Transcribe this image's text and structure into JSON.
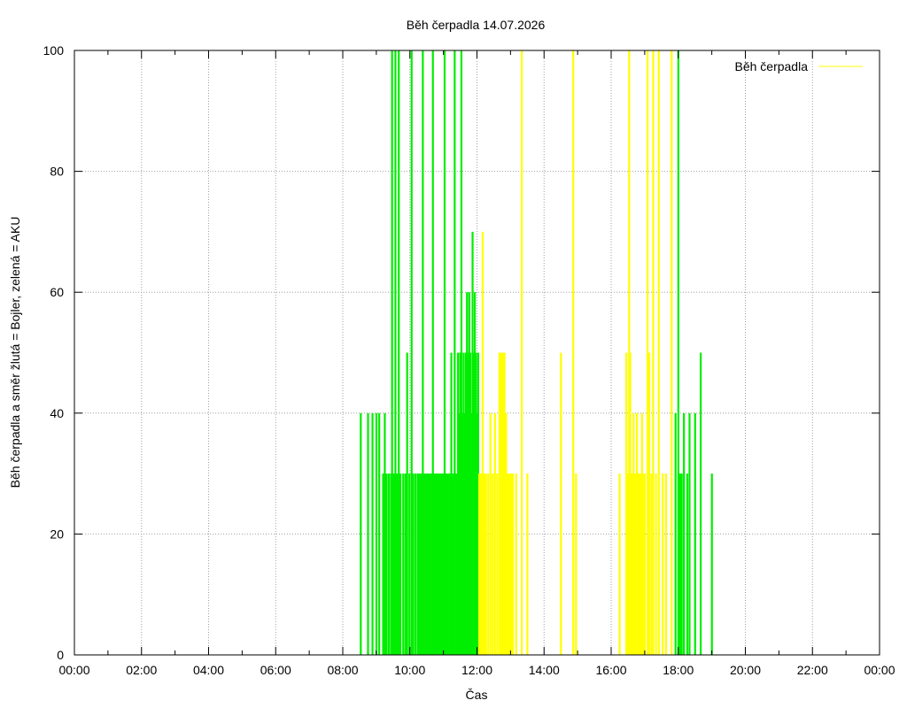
{
  "chart_data": {
    "type": "bar",
    "title": "Běh čerpadla 14.07.2026",
    "xlabel": "Čas",
    "ylabel": "Běh čerpadla a směr žlutá = Bojler, zelená = AKU",
    "legend": {
      "label": "Běh čerpadla",
      "position": "top-right"
    },
    "xlim": [
      "00:00",
      "24:00"
    ],
    "ylim": [
      0,
      100
    ],
    "grid": true,
    "x_ticks": [
      "00:00",
      "02:00",
      "04:00",
      "06:00",
      "08:00",
      "10:00",
      "12:00",
      "14:00",
      "16:00",
      "18:00",
      "20:00",
      "22:00",
      "00:00"
    ],
    "y_ticks": [
      "0",
      "20",
      "40",
      "60",
      "80",
      "100"
    ],
    "colors": {
      "Bojler": "#ffff00",
      "AKU": "#00ee00"
    },
    "series": [
      {
        "name": "AKU",
        "color": "#00ee00",
        "points": [
          [
            "08:32",
            40
          ],
          [
            "08:45",
            40
          ],
          [
            "08:53",
            40
          ],
          [
            "09:00",
            40
          ],
          [
            "09:05",
            40
          ],
          [
            "09:12",
            30
          ],
          [
            "09:15",
            40
          ],
          [
            "09:18",
            30
          ],
          [
            "09:22",
            30
          ],
          [
            "09:26",
            30
          ],
          [
            "09:28",
            100
          ],
          [
            "09:31",
            30
          ],
          [
            "09:34",
            100
          ],
          [
            "09:37",
            30
          ],
          [
            "09:40",
            100
          ],
          [
            "09:43",
            30
          ],
          [
            "09:48",
            30
          ],
          [
            "09:52",
            30
          ],
          [
            "09:55",
            50
          ],
          [
            "09:59",
            30
          ],
          [
            "10:03",
            100
          ],
          [
            "10:06",
            30
          ],
          [
            "10:10",
            30
          ],
          [
            "10:14",
            30
          ],
          [
            "10:17",
            30
          ],
          [
            "10:20",
            30
          ],
          [
            "10:23",
            100
          ],
          [
            "10:26",
            30
          ],
          [
            "10:29",
            30
          ],
          [
            "10:32",
            30
          ],
          [
            "10:35",
            30
          ],
          [
            "10:38",
            30
          ],
          [
            "10:41",
            100
          ],
          [
            "10:44",
            30
          ],
          [
            "10:47",
            30
          ],
          [
            "10:50",
            30
          ],
          [
            "10:53",
            30
          ],
          [
            "10:56",
            30
          ],
          [
            "10:59",
            30
          ],
          [
            "11:02",
            100
          ],
          [
            "11:05",
            30
          ],
          [
            "11:08",
            30
          ],
          [
            "11:11",
            30
          ],
          [
            "11:14",
            50
          ],
          [
            "11:17",
            30
          ],
          [
            "11:20",
            100
          ],
          [
            "11:23",
            30
          ],
          [
            "11:26",
            50
          ],
          [
            "11:28",
            40
          ],
          [
            "11:30",
            50
          ],
          [
            "11:32",
            100
          ],
          [
            "11:34",
            40
          ],
          [
            "11:36",
            50
          ],
          [
            "11:38",
            40
          ],
          [
            "11:40",
            50
          ],
          [
            "11:42",
            60
          ],
          [
            "11:44",
            50
          ],
          [
            "11:46",
            60
          ],
          [
            "11:48",
            50
          ],
          [
            "11:50",
            40
          ],
          [
            "11:52",
            70
          ],
          [
            "11:54",
            50
          ],
          [
            "11:56",
            60
          ],
          [
            "11:58",
            50
          ],
          [
            "12:00",
            40
          ],
          [
            "12:02",
            50
          ],
          [
            "17:55",
            40
          ],
          [
            "18:00",
            100
          ],
          [
            "18:02",
            30
          ],
          [
            "18:04",
            30
          ],
          [
            "18:06",
            30
          ],
          [
            "18:10",
            40
          ],
          [
            "18:16",
            30
          ],
          [
            "18:20",
            40
          ],
          [
            "18:30",
            40
          ],
          [
            "18:40",
            50
          ],
          [
            "19:00",
            30
          ]
        ]
      },
      {
        "name": "Bojler",
        "color": "#ffff00",
        "points": [
          [
            "12:04",
            30
          ],
          [
            "12:07",
            30
          ],
          [
            "12:10",
            70
          ],
          [
            "12:13",
            30
          ],
          [
            "12:16",
            30
          ],
          [
            "12:20",
            30
          ],
          [
            "12:24",
            40
          ],
          [
            "12:28",
            30
          ],
          [
            "12:32",
            40
          ],
          [
            "12:36",
            30
          ],
          [
            "12:40",
            50
          ],
          [
            "12:43",
            50
          ],
          [
            "12:46",
            50
          ],
          [
            "12:49",
            50
          ],
          [
            "12:52",
            40
          ],
          [
            "12:55",
            30
          ],
          [
            "12:58",
            30
          ],
          [
            "13:01",
            30
          ],
          [
            "13:04",
            30
          ],
          [
            "13:10",
            30
          ],
          [
            "13:20",
            100
          ],
          [
            "13:30",
            30
          ],
          [
            "14:30",
            50
          ],
          [
            "14:52",
            100
          ],
          [
            "14:57",
            30
          ],
          [
            "16:15",
            30
          ],
          [
            "16:27",
            50
          ],
          [
            "16:30",
            30
          ],
          [
            "16:32",
            100
          ],
          [
            "16:34",
            50
          ],
          [
            "16:36",
            30
          ],
          [
            "16:38",
            30
          ],
          [
            "16:40",
            40
          ],
          [
            "16:42",
            30
          ],
          [
            "16:44",
            30
          ],
          [
            "16:46",
            40
          ],
          [
            "16:48",
            30
          ],
          [
            "16:50",
            30
          ],
          [
            "16:52",
            30
          ],
          [
            "16:55",
            40
          ],
          [
            "16:58",
            30
          ],
          [
            "17:00",
            30
          ],
          [
            "17:05",
            100
          ],
          [
            "17:08",
            50
          ],
          [
            "17:12",
            30
          ],
          [
            "17:15",
            100
          ],
          [
            "17:20",
            30
          ],
          [
            "17:25",
            100
          ],
          [
            "17:32",
            30
          ],
          [
            "17:38",
            30
          ],
          [
            "17:48",
            100
          ]
        ]
      }
    ]
  }
}
